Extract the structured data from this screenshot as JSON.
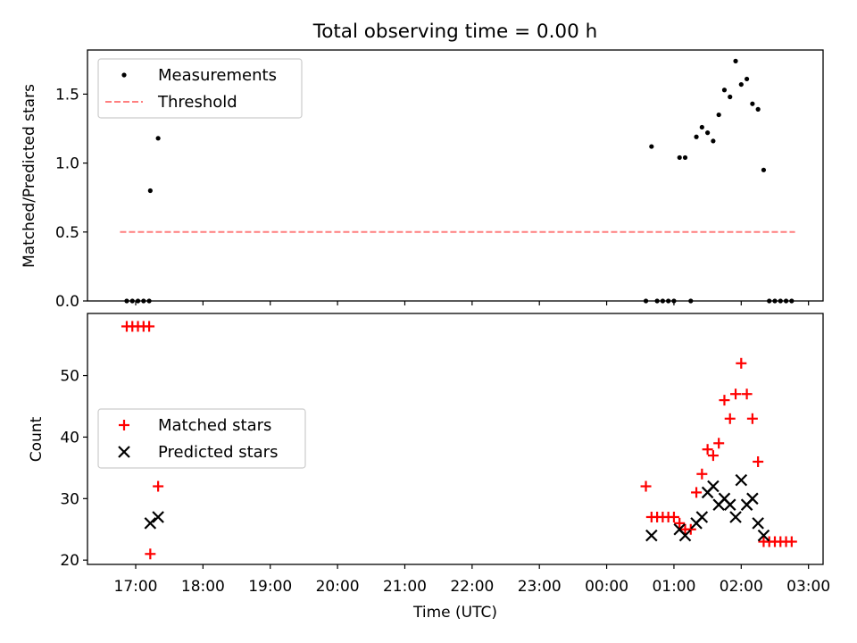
{
  "chart_data": [
    {
      "type": "scatter",
      "title": "Total observing time = 0.00 h",
      "xlabel": "",
      "ylabel": "Matched/Predicted stars",
      "ylim": [
        0,
        1.82
      ],
      "yticks": [
        0.0,
        0.5,
        1.0,
        1.5
      ],
      "ytick_labels": [
        "0.0",
        "0.5",
        "1.0",
        "1.5"
      ],
      "legend_position": "top-left",
      "series": [
        {
          "name": "Measurements",
          "kind": "points",
          "color": "#000000",
          "points": [
            [
              "16:52",
              0.0
            ],
            [
              "16:57",
              0.0
            ],
            [
              "17:02",
              0.0
            ],
            [
              "17:07",
              0.0
            ],
            [
              "17:12",
              0.0
            ],
            [
              "17:13",
              0.8
            ],
            [
              "17:20",
              1.18
            ],
            [
              "00:35",
              0.0
            ],
            [
              "00:40",
              1.12
            ],
            [
              "00:45",
              0.0
            ],
            [
              "00:50",
              0.0
            ],
            [
              "00:55",
              0.0
            ],
            [
              "01:00",
              0.0
            ],
            [
              "01:05",
              1.04
            ],
            [
              "01:10",
              1.04
            ],
            [
              "01:15",
              0.0
            ],
            [
              "01:20",
              1.19
            ],
            [
              "01:25",
              1.26
            ],
            [
              "01:30",
              1.22
            ],
            [
              "01:35",
              1.16
            ],
            [
              "01:40",
              1.35
            ],
            [
              "01:45",
              1.53
            ],
            [
              "01:50",
              1.48
            ],
            [
              "01:55",
              1.74
            ],
            [
              "02:00",
              1.57
            ],
            [
              "02:05",
              1.61
            ],
            [
              "02:10",
              1.43
            ],
            [
              "02:15",
              1.39
            ],
            [
              "02:20",
              0.95
            ],
            [
              "02:25",
              0.0
            ],
            [
              "02:30",
              0.0
            ],
            [
              "02:35",
              0.0
            ],
            [
              "02:40",
              0.0
            ],
            [
              "02:45",
              0.0
            ]
          ]
        },
        {
          "name": "Threshold",
          "kind": "dashed-line",
          "color": "#ff7f7f",
          "points": [
            [
              "16:46",
              0.5
            ],
            [
              "02:48",
              0.5
            ]
          ]
        }
      ]
    },
    {
      "type": "scatter",
      "title": "",
      "xlabel": "Time (UTC)",
      "ylabel": "Count",
      "ylim": [
        19.3,
        60.1
      ],
      "yticks": [
        20,
        30,
        40,
        50
      ],
      "ytick_labels": [
        "20",
        "30",
        "40",
        "50"
      ],
      "legend_position": "center-left",
      "series": [
        {
          "name": "Matched stars",
          "marker": "plus",
          "color": "#ff0000",
          "points": [
            [
              "16:52",
              58
            ],
            [
              "16:57",
              58
            ],
            [
              "17:02",
              58
            ],
            [
              "17:07",
              58
            ],
            [
              "17:12",
              58
            ],
            [
              "17:13",
              21
            ],
            [
              "17:20",
              32
            ],
            [
              "00:35",
              32
            ],
            [
              "00:40",
              27
            ],
            [
              "00:45",
              27
            ],
            [
              "00:50",
              27
            ],
            [
              "00:55",
              27
            ],
            [
              "01:00",
              27
            ],
            [
              "01:05",
              26
            ],
            [
              "01:10",
              25
            ],
            [
              "01:15",
              25
            ],
            [
              "01:20",
              31
            ],
            [
              "01:25",
              34
            ],
            [
              "01:30",
              38
            ],
            [
              "01:35",
              37
            ],
            [
              "01:40",
              39
            ],
            [
              "01:45",
              46
            ],
            [
              "01:50",
              43
            ],
            [
              "01:55",
              47
            ],
            [
              "02:00",
              52
            ],
            [
              "02:05",
              47
            ],
            [
              "02:10",
              43
            ],
            [
              "02:15",
              36
            ],
            [
              "02:20",
              23
            ],
            [
              "02:25",
              23
            ],
            [
              "02:30",
              23
            ],
            [
              "02:35",
              23
            ],
            [
              "02:40",
              23
            ],
            [
              "02:45",
              23
            ]
          ]
        },
        {
          "name": "Predicted stars",
          "marker": "x",
          "color": "#000000",
          "points": [
            [
              "17:13",
              26
            ],
            [
              "17:20",
              27
            ],
            [
              "00:40",
              24
            ],
            [
              "01:05",
              25
            ],
            [
              "01:10",
              24
            ],
            [
              "01:20",
              26
            ],
            [
              "01:25",
              27
            ],
            [
              "01:30",
              31
            ],
            [
              "01:35",
              32
            ],
            [
              "01:40",
              29
            ],
            [
              "01:45",
              30
            ],
            [
              "01:50",
              29
            ],
            [
              "01:55",
              27
            ],
            [
              "02:00",
              33
            ],
            [
              "02:05",
              29
            ],
            [
              "02:10",
              30
            ],
            [
              "02:15",
              26
            ],
            [
              "02:20",
              24
            ]
          ]
        }
      ]
    }
  ],
  "xaxis": {
    "start": "16:17",
    "end": "03:13",
    "ticks": [
      "17:00",
      "18:00",
      "19:00",
      "20:00",
      "21:00",
      "22:00",
      "23:00",
      "00:00",
      "01:00",
      "02:00",
      "03:00"
    ]
  }
}
